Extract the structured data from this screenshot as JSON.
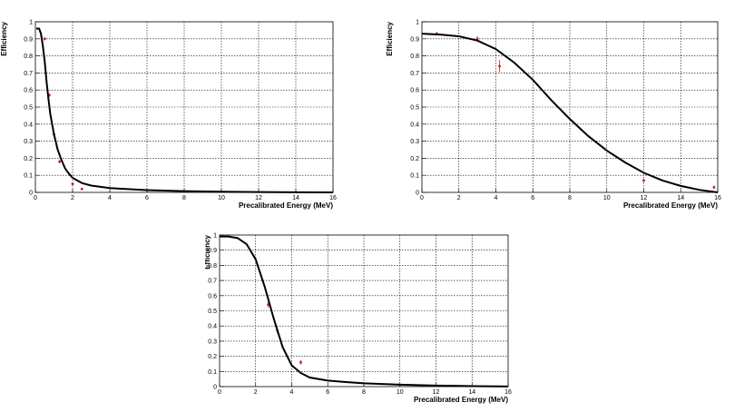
{
  "chart_data": [
    {
      "id": "top-left",
      "type": "scatter",
      "title": "",
      "xlabel": "Precalibrated Energy (MeV)",
      "ylabel": "Efficiency",
      "xlim": [
        0,
        16
      ],
      "ylim": [
        0,
        1
      ],
      "xticks": [
        0,
        2,
        4,
        6,
        8,
        10,
        12,
        14,
        16
      ],
      "yticks": [
        0,
        0.1,
        0.2,
        0.3,
        0.4,
        0.5,
        0.6,
        0.7,
        0.8,
        0.9,
        1
      ],
      "grid": true,
      "points": [
        {
          "x": 0.5,
          "y": 0.9,
          "err": 0.01
        },
        {
          "x": 0.75,
          "y": 0.57,
          "err": 0.01
        },
        {
          "x": 1.0,
          "y": 0.34,
          "err": 0.01
        },
        {
          "x": 1.3,
          "y": 0.18,
          "err": 0.01
        },
        {
          "x": 2.0,
          "y": 0.05,
          "err": 0.005
        },
        {
          "x": 2.5,
          "y": 0.02,
          "err": 0.005
        }
      ],
      "curve": [
        [
          0.05,
          0.96
        ],
        [
          0.2,
          0.96
        ],
        [
          0.3,
          0.93
        ],
        [
          0.4,
          0.86
        ],
        [
          0.5,
          0.77
        ],
        [
          0.6,
          0.65
        ],
        [
          0.7,
          0.55
        ],
        [
          0.8,
          0.46
        ],
        [
          1.0,
          0.34
        ],
        [
          1.2,
          0.25
        ],
        [
          1.4,
          0.19
        ],
        [
          1.6,
          0.14
        ],
        [
          1.8,
          0.11
        ],
        [
          2.0,
          0.085
        ],
        [
          2.5,
          0.055
        ],
        [
          3.0,
          0.04
        ],
        [
          4.0,
          0.025
        ],
        [
          6.0,
          0.013
        ],
        [
          8.0,
          0.007
        ],
        [
          10.0,
          0.004
        ],
        [
          12.0,
          0.002
        ],
        [
          14.0,
          0.0008
        ],
        [
          16.0,
          0.0002
        ]
      ]
    },
    {
      "id": "top-right",
      "type": "scatter",
      "title": "",
      "xlabel": "Precalibrated Energy (MeV)",
      "ylabel": "Efficiency",
      "xlim": [
        0,
        16
      ],
      "ylim": [
        0,
        1
      ],
      "xticks": [
        0,
        2,
        4,
        6,
        8,
        10,
        12,
        14,
        16
      ],
      "yticks": [
        0,
        0.1,
        0.2,
        0.3,
        0.4,
        0.5,
        0.6,
        0.7,
        0.8,
        0.9,
        1
      ],
      "grid": true,
      "points": [
        {
          "x": 0.8,
          "y": 0.93,
          "err": 0.01
        },
        {
          "x": 3.0,
          "y": 0.9,
          "err": 0.015
        },
        {
          "x": 4.2,
          "y": 0.74,
          "err": 0.035
        },
        {
          "x": 12.0,
          "y": 0.07,
          "err": 0.01
        },
        {
          "x": 15.8,
          "y": 0.03,
          "err": 0.01
        }
      ],
      "curve": [
        [
          0,
          0.93
        ],
        [
          1,
          0.925
        ],
        [
          2,
          0.915
        ],
        [
          3,
          0.89
        ],
        [
          4,
          0.84
        ],
        [
          5,
          0.76
        ],
        [
          6,
          0.66
        ],
        [
          7,
          0.54
        ],
        [
          8,
          0.43
        ],
        [
          9,
          0.33
        ],
        [
          10,
          0.245
        ],
        [
          11,
          0.175
        ],
        [
          12,
          0.115
        ],
        [
          13,
          0.07
        ],
        [
          14,
          0.038
        ],
        [
          15,
          0.015
        ],
        [
          16,
          0.0
        ]
      ]
    },
    {
      "id": "bottom-center",
      "type": "scatter",
      "title": "",
      "xlabel": "Precalibrated Energy (MeV)",
      "ylabel": "Efficiency",
      "xlim": [
        0,
        16
      ],
      "ylim": [
        0,
        1
      ],
      "xticks": [
        0,
        2,
        4,
        6,
        8,
        10,
        12,
        14,
        16
      ],
      "yticks": [
        0,
        0.1,
        0.2,
        0.3,
        0.4,
        0.5,
        0.6,
        0.7,
        0.8,
        0.9,
        1
      ],
      "grid": true,
      "points": [
        {
          "x": 2.7,
          "y": 0.54,
          "err": 0.02
        },
        {
          "x": 3.2,
          "y": 0.37,
          "err": 0.02
        },
        {
          "x": 4.5,
          "y": 0.16,
          "err": 0.015
        }
      ],
      "curve": [
        [
          0,
          0.99
        ],
        [
          0.5,
          0.99
        ],
        [
          1,
          0.98
        ],
        [
          1.5,
          0.94
        ],
        [
          2,
          0.84
        ],
        [
          2.5,
          0.66
        ],
        [
          3,
          0.45
        ],
        [
          3.5,
          0.26
        ],
        [
          4,
          0.14
        ],
        [
          4.5,
          0.09
        ],
        [
          5,
          0.06
        ],
        [
          6,
          0.04
        ],
        [
          7,
          0.03
        ],
        [
          8,
          0.022
        ],
        [
          10,
          0.013
        ],
        [
          12,
          0.007
        ],
        [
          14,
          0.003
        ],
        [
          16,
          0.001
        ]
      ]
    }
  ]
}
